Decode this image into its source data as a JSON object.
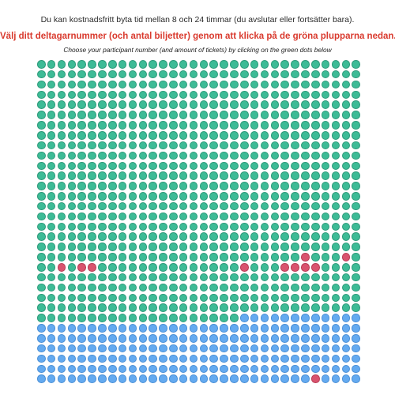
{
  "header": {
    "info_text": "Du kan kostnadsfritt byta tid mellan 8 och 24 timmar (du avslutar eller fortsätter bara).",
    "instruction_sv": "Välj ditt deltagarnummer (och antal biljetter) genom att klicka på de gröna plupparna nedan.",
    "instruction_en": "Choose your participant number (and amount of tickets) by clicking on the green dots below"
  },
  "colors": {
    "available": "#3dbb96",
    "taken": "#d9536e",
    "extra": "#64aaf0"
  },
  "ticket_grid": {
    "columns": 32,
    "rows": 32,
    "total": 1024,
    "first_blue_index": 820,
    "taken_indices": [
      634,
      638,
      642,
      644,
      645,
      660,
      664,
      665,
      666,
      667,
      1019
    ]
  }
}
